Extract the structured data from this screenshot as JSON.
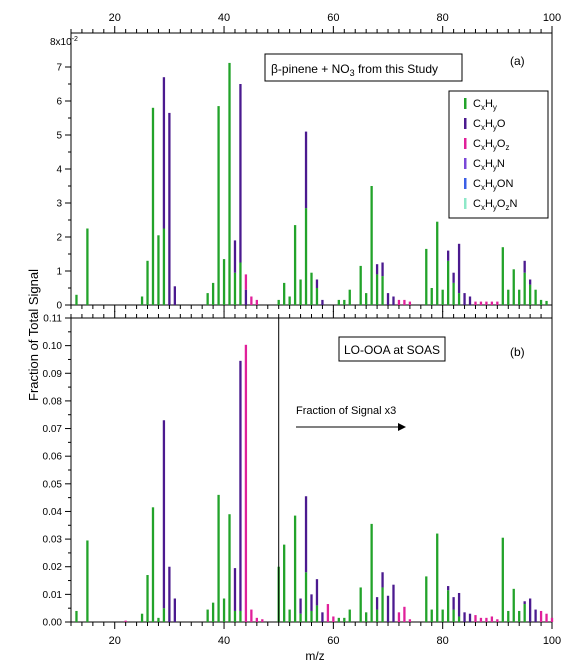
{
  "figure": {
    "ylabel": "Fraction of Total Signal",
    "xlabel": "m/z"
  },
  "colors": {
    "CxHy": "#22a32a",
    "CxHyO": "#4b1a8f",
    "CxHyOz": "#e0209a",
    "CxHyN": "#7a48d8",
    "CxHyON": "#3b5fe6",
    "CxHyOzN": "#8ee8c8"
  },
  "chart_data": [
    {
      "type": "bar",
      "panel_label": "(a)",
      "title": "β-pinene + NO3 from this Study",
      "title_parts": {
        "pre": "β-pinene + NO",
        "sub": "3",
        "post": " from this Study"
      },
      "xlim": [
        12,
        100
      ],
      "ylim": [
        0,
        0.08
      ],
      "yscale_label": "8x10",
      "yscale_exp": "-2",
      "y_ticks": [
        0,
        1,
        2,
        3,
        4,
        5,
        6,
        7
      ],
      "y_tick_labels": [
        "0",
        "1",
        "2",
        "3",
        "4",
        "5",
        "6",
        "7"
      ],
      "x_ticks_top": [
        20,
        40,
        60,
        80,
        100
      ],
      "x_tick_labels_top": [
        "20",
        "40",
        "60",
        "80",
        "100"
      ],
      "legend": {
        "placement": "right",
        "entries": [
          {
            "key": "CxHy",
            "parts": [
              [
                "C",
                ""
              ],
              [
                "x",
                "sub"
              ],
              [
                "H",
                ""
              ],
              [
                "y",
                "sub"
              ]
            ]
          },
          {
            "key": "CxHyO",
            "parts": [
              [
                "C",
                ""
              ],
              [
                "x",
                "sub"
              ],
              [
                "H",
                ""
              ],
              [
                "y",
                "sub"
              ],
              [
                "O",
                ""
              ]
            ]
          },
          {
            "key": "CxHyOz",
            "parts": [
              [
                "C",
                ""
              ],
              [
                "x",
                "sub"
              ],
              [
                "H",
                ""
              ],
              [
                "y",
                "sub"
              ],
              [
                "O",
                ""
              ],
              [
                "z",
                "sub"
              ]
            ]
          },
          {
            "key": "CxHyN",
            "parts": [
              [
                "C",
                ""
              ],
              [
                "x",
                "sub"
              ],
              [
                "H",
                ""
              ],
              [
                "y",
                "sub"
              ],
              [
                "N",
                ""
              ]
            ]
          },
          {
            "key": "CxHyON",
            "parts": [
              [
                "C",
                ""
              ],
              [
                "x",
                "sub"
              ],
              [
                "H",
                ""
              ],
              [
                "y",
                "sub"
              ],
              [
                "ON",
                ""
              ]
            ]
          },
          {
            "key": "CxHyOzN",
            "parts": [
              [
                "C",
                ""
              ],
              [
                "x",
                "sub"
              ],
              [
                "H",
                ""
              ],
              [
                "y",
                "sub"
              ],
              [
                "O",
                ""
              ],
              [
                "z",
                "sub"
              ],
              [
                "N",
                ""
              ]
            ]
          }
        ]
      },
      "bars": [
        {
          "mz": 13,
          "CxHy": 0.003
        },
        {
          "mz": 15,
          "CxHy": 0.0225
        },
        {
          "mz": 25,
          "CxHy": 0.0025
        },
        {
          "mz": 26,
          "CxHy": 0.013
        },
        {
          "mz": 27,
          "CxHy": 0.058
        },
        {
          "mz": 28,
          "CxHy": 0.0205
        },
        {
          "mz": 29,
          "CxHy": 0.0225,
          "CxHyO": 0.0445
        },
        {
          "mz": 30,
          "CxHyO": 0.0565
        },
        {
          "mz": 31,
          "CxHyO": 0.0055
        },
        {
          "mz": 37,
          "CxHy": 0.0035
        },
        {
          "mz": 38,
          "CxHy": 0.0065
        },
        {
          "mz": 39,
          "CxHy": 0.0585
        },
        {
          "mz": 40,
          "CxHy": 0.0135
        },
        {
          "mz": 41,
          "CxHy": 0.0712
        },
        {
          "mz": 42,
          "CxHy": 0.0095,
          "CxHyO": 0.0095
        },
        {
          "mz": 43,
          "CxHy": 0.0125,
          "CxHyO": 0.0525
        },
        {
          "mz": 44,
          "CxHyO": 0.0045,
          "CxHyOz": 0.0045
        },
        {
          "mz": 45,
          "CxHyOz": 0.0025
        },
        {
          "mz": 46,
          "CxHyOz": 0.0015
        },
        {
          "mz": 50,
          "CxHy": 0.0015
        },
        {
          "mz": 51,
          "CxHy": 0.0065
        },
        {
          "mz": 52,
          "CxHy": 0.0025
        },
        {
          "mz": 53,
          "CxHy": 0.0235
        },
        {
          "mz": 54,
          "CxHy": 0.0075
        },
        {
          "mz": 55,
          "CxHy": 0.0285,
          "CxHyO": 0.0225
        },
        {
          "mz": 56,
          "CxHy": 0.0095
        },
        {
          "mz": 57,
          "CxHy": 0.005,
          "CxHyO": 0.0025
        },
        {
          "mz": 58,
          "CxHyO": 0.0015
        },
        {
          "mz": 61,
          "CxHy": 0.0015
        },
        {
          "mz": 62,
          "CxHy": 0.0015
        },
        {
          "mz": 63,
          "CxHy": 0.0045
        },
        {
          "mz": 65,
          "CxHy": 0.0115
        },
        {
          "mz": 66,
          "CxHy": 0.0035
        },
        {
          "mz": 67,
          "CxHy": 0.035
        },
        {
          "mz": 68,
          "CxHy": 0.009,
          "CxHyO": 0.003
        },
        {
          "mz": 69,
          "CxHy": 0.0085,
          "CxHyO": 0.004
        },
        {
          "mz": 70,
          "CxHyO": 0.0035
        },
        {
          "mz": 71,
          "CxHyO": 0.0025
        },
        {
          "mz": 72,
          "CxHyOz": 0.0015
        },
        {
          "mz": 73,
          "CxHyOz": 0.0015
        },
        {
          "mz": 74,
          "CxHyOz": 0.001
        },
        {
          "mz": 77,
          "CxHy": 0.0165
        },
        {
          "mz": 78,
          "CxHy": 0.005
        },
        {
          "mz": 79,
          "CxHy": 0.0245
        },
        {
          "mz": 80,
          "CxHy": 0.0045
        },
        {
          "mz": 81,
          "CxHy": 0.013,
          "CxHyO": 0.003
        },
        {
          "mz": 82,
          "CxHy": 0.0065,
          "CxHyO": 0.003
        },
        {
          "mz": 83,
          "CxHy": 0.0035,
          "CxHyO": 0.0145
        },
        {
          "mz": 84,
          "CxHyO": 0.0035
        },
        {
          "mz": 85,
          "CxHyO": 0.0025
        },
        {
          "mz": 86,
          "CxHyOz": 0.001
        },
        {
          "mz": 87,
          "CxHyOz": 0.001
        },
        {
          "mz": 88,
          "CxHyOz": 0.001
        },
        {
          "mz": 89,
          "CxHyOz": 0.001
        },
        {
          "mz": 90,
          "CxHyOz": 0.001
        },
        {
          "mz": 91,
          "CxHy": 0.017
        },
        {
          "mz": 92,
          "CxHy": 0.0045
        },
        {
          "mz": 93,
          "CxHy": 0.0105
        },
        {
          "mz": 94,
          "CxHy": 0.0045
        },
        {
          "mz": 95,
          "CxHy": 0.0095,
          "CxHyO": 0.0035
        },
        {
          "mz": 96,
          "CxHy": 0.006,
          "CxHyO": 0.0015
        },
        {
          "mz": 97,
          "CxHy": 0.0045
        },
        {
          "mz": 98,
          "CxHy": 0.0015
        },
        {
          "mz": 99,
          "CxHy": 0.0012
        }
      ]
    },
    {
      "type": "bar",
      "panel_label": "(b)",
      "title": "LO-OOA at SOAS",
      "annotation": "Fraction of Signal x3",
      "divider_mz": 50,
      "xlim": [
        12,
        100
      ],
      "ylim": [
        0,
        0.11
      ],
      "y_ticks": [
        0,
        0.01,
        0.02,
        0.03,
        0.04,
        0.05,
        0.06,
        0.07,
        0.08,
        0.09,
        0.1,
        0.11
      ],
      "y_tick_labels": [
        "0.00",
        "0.01",
        "0.02",
        "0.03",
        "0.04",
        "0.05",
        "0.06",
        "0.07",
        "0.08",
        "0.09",
        "0.10",
        "0.11"
      ],
      "x_ticks": [
        20,
        40,
        60,
        80,
        100
      ],
      "x_tick_labels": [
        "20",
        "40",
        "60",
        "80",
        "100"
      ],
      "bars": [
        {
          "mz": 13,
          "CxHy": 0.004
        },
        {
          "mz": 15,
          "CxHy": 0.0295
        },
        {
          "mz": 22,
          "CxHyOz": 0.0005
        },
        {
          "mz": 25,
          "CxHy": 0.003
        },
        {
          "mz": 26,
          "CxHy": 0.017
        },
        {
          "mz": 27,
          "CxHy": 0.0415
        },
        {
          "mz": 28,
          "CxHy": 0.0015
        },
        {
          "mz": 29,
          "CxHy": 0.005,
          "CxHyO": 0.068
        },
        {
          "mz": 30,
          "CxHyO": 0.02
        },
        {
          "mz": 31,
          "CxHyO": 0.0085
        },
        {
          "mz": 37,
          "CxHy": 0.0045
        },
        {
          "mz": 38,
          "CxHy": 0.007
        },
        {
          "mz": 39,
          "CxHy": 0.046
        },
        {
          "mz": 40,
          "CxHy": 0.0085
        },
        {
          "mz": 41,
          "CxHy": 0.039
        },
        {
          "mz": 42,
          "CxHy": 0.004,
          "CxHyO": 0.0155
        },
        {
          "mz": 43,
          "CxHy": 0.004,
          "CxHyO": 0.0905
        },
        {
          "mz": 44,
          "CxHyOz": 0.1003
        },
        {
          "mz": 45,
          "CxHyOz": 0.0045
        },
        {
          "mz": 46,
          "CxHyOz": 0.0015
        },
        {
          "mz": 47,
          "CxHyOz": 0.001
        },
        {
          "mz": 50,
          "CxHy": 0.02
        },
        {
          "mz": 51,
          "CxHy": 0.028
        },
        {
          "mz": 52,
          "CxHy": 0.0045
        },
        {
          "mz": 53,
          "CxHy": 0.0385
        },
        {
          "mz": 54,
          "CxHy": 0.003,
          "CxHyO": 0.0055
        },
        {
          "mz": 55,
          "CxHy": 0.018,
          "CxHyO": 0.0275
        },
        {
          "mz": 56,
          "CxHy": 0.004,
          "CxHyO": 0.006
        },
        {
          "mz": 57,
          "CxHy": 0.006,
          "CxHyO": 0.0095
        },
        {
          "mz": 58,
          "CxHyO": 0.0035
        },
        {
          "mz": 59,
          "CxHyOz": 0.0065
        },
        {
          "mz": 60,
          "CxHyOz": 0.002
        },
        {
          "mz": 61,
          "CxHy": 0.0015
        },
        {
          "mz": 62,
          "CxHy": 0.0015
        },
        {
          "mz": 63,
          "CxHy": 0.0045
        },
        {
          "mz": 65,
          "CxHy": 0.0125
        },
        {
          "mz": 66,
          "CxHy": 0.0035
        },
        {
          "mz": 67,
          "CxHy": 0.0355
        },
        {
          "mz": 68,
          "CxHy": 0.0045,
          "CxHyO": 0.0045
        },
        {
          "mz": 69,
          "CxHy": 0.0125,
          "CxHyO": 0.0055
        },
        {
          "mz": 70,
          "CxHyO": 0.0095
        },
        {
          "mz": 71,
          "CxHyO": 0.0135
        },
        {
          "mz": 72,
          "CxHyOz": 0.0035
        },
        {
          "mz": 73,
          "CxHyOz": 0.0055
        },
        {
          "mz": 74,
          "CxHyOz": 0.001
        },
        {
          "mz": 77,
          "CxHy": 0.0165
        },
        {
          "mz": 78,
          "CxHy": 0.0045
        },
        {
          "mz": 79,
          "CxHy": 0.032
        },
        {
          "mz": 80,
          "CxHy": 0.0045
        },
        {
          "mz": 81,
          "CxHy": 0.0115,
          "CxHyO": 0.0015
        },
        {
          "mz": 82,
          "CxHy": 0.0045,
          "CxHyO": 0.0045
        },
        {
          "mz": 83,
          "CxHy": 0.002,
          "CxHyO": 0.0085
        },
        {
          "mz": 84,
          "CxHyO": 0.0035
        },
        {
          "mz": 85,
          "CxHyO": 0.003
        },
        {
          "mz": 86,
          "CxHyOz": 0.0025
        },
        {
          "mz": 87,
          "CxHyOz": 0.0015
        },
        {
          "mz": 88,
          "CxHyOz": 0.0015
        },
        {
          "mz": 89,
          "CxHyOz": 0.002
        },
        {
          "mz": 90,
          "CxHyOz": 0.001
        },
        {
          "mz": 91,
          "CxHy": 0.0305
        },
        {
          "mz": 92,
          "CxHy": 0.004
        },
        {
          "mz": 93,
          "CxHy": 0.012
        },
        {
          "mz": 94,
          "CxHy": 0.004
        },
        {
          "mz": 95,
          "CxHy": 0.0065,
          "CxHyO": 0.001
        },
        {
          "mz": 96,
          "CxHyO": 0.0085
        },
        {
          "mz": 97,
          "CxHyO": 0.0045
        },
        {
          "mz": 98,
          "CxHyOz": 0.004
        },
        {
          "mz": 99,
          "CxHyOz": 0.003
        },
        {
          "mz": 100,
          "CxHyOz": 0.0015
        }
      ]
    }
  ]
}
